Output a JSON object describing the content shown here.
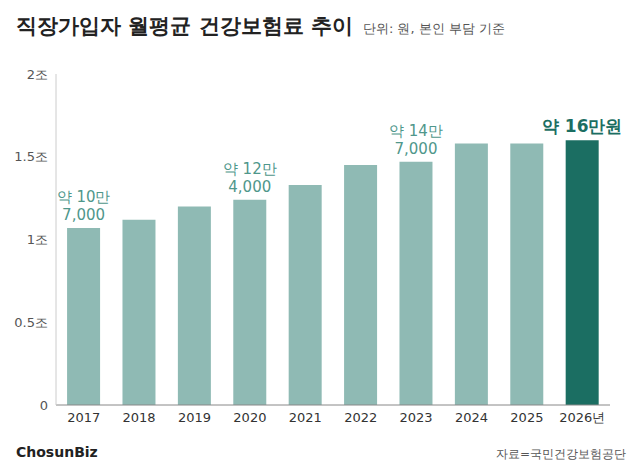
{
  "chart_data": {
    "type": "bar",
    "title": "직장가입자 월평균 건강보험료 추이",
    "subtitle": "단위: 원, 본인 부담 기준",
    "categories": [
      "2017",
      "2018",
      "2019",
      "2020",
      "2021",
      "2022",
      "2023",
      "2024",
      "2025",
      "2026년"
    ],
    "values": [
      1.07,
      1.12,
      1.2,
      1.24,
      1.33,
      1.45,
      1.47,
      1.58,
      1.58,
      1.6
    ],
    "colors": [
      "#8fbab4",
      "#8fbab4",
      "#8fbab4",
      "#8fbab4",
      "#8fbab4",
      "#8fbab4",
      "#8fbab4",
      "#8fbab4",
      "#8fbab4",
      "#1b6e62"
    ],
    "ylim": [
      0,
      2
    ],
    "yticks": [
      0,
      {
        "value": 0.5,
        "label": "0.5조"
      },
      {
        "value": 1,
        "label": "1조"
      },
      {
        "value": 1.5,
        "label": "1.5조"
      },
      {
        "value": 2,
        "label": "2조"
      }
    ],
    "grid": false,
    "annotations": [
      {
        "category": "2017",
        "lines": [
          "약 10만",
          "7,000"
        ]
      },
      {
        "category": "2020",
        "lines": [
          "약 12만",
          "4,000"
        ]
      },
      {
        "category": "2023",
        "lines": [
          "약 14만",
          "7,000"
        ]
      },
      {
        "category": "2026년",
        "lines": [
          "약 16만원"
        ]
      }
    ],
    "source": "자료=국민건강보험공단",
    "logo": "ChosunBiz"
  }
}
